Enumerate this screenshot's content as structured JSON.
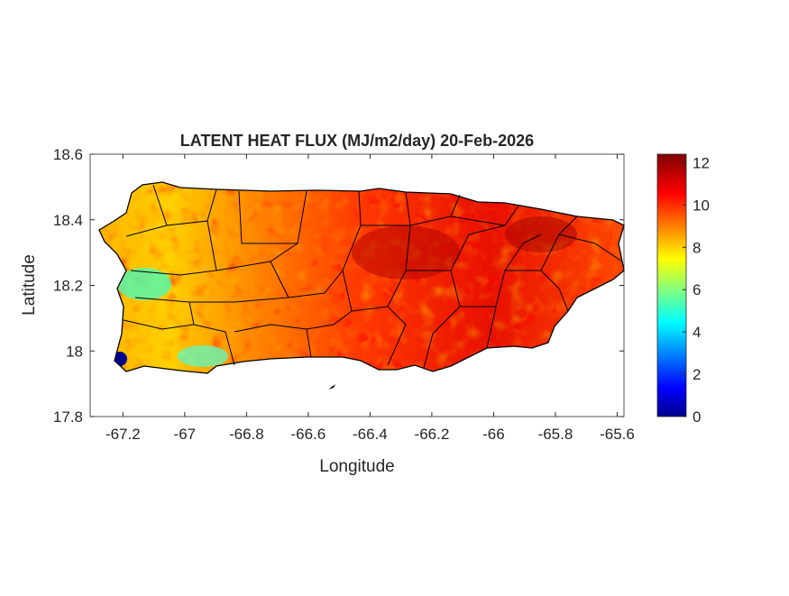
{
  "chart_data": {
    "type": "heatmap",
    "title": "LATENT HEAT FLUX (MJ/m2/day) 20-Feb-2026",
    "xlabel": "Longitude",
    "ylabel": "Latitude",
    "xlim": [
      -67.306,
      -65.578
    ],
    "ylim": [
      17.8,
      18.6
    ],
    "xticks": [
      "-67.2",
      "-67",
      "-66.8",
      "-66.6",
      "-66.4",
      "-66.2",
      "-66",
      "-65.8",
      "-65.6"
    ],
    "yticks": [
      "17.8",
      "18",
      "18.2",
      "18.4",
      "18.6"
    ],
    "colorbar": {
      "colormap": "jet",
      "limits": [
        0,
        12.4
      ],
      "ticks": [
        "0",
        "2",
        "4",
        "6",
        "8",
        "10",
        "12"
      ]
    },
    "grid": false,
    "legend": "colorbar-right"
  }
}
